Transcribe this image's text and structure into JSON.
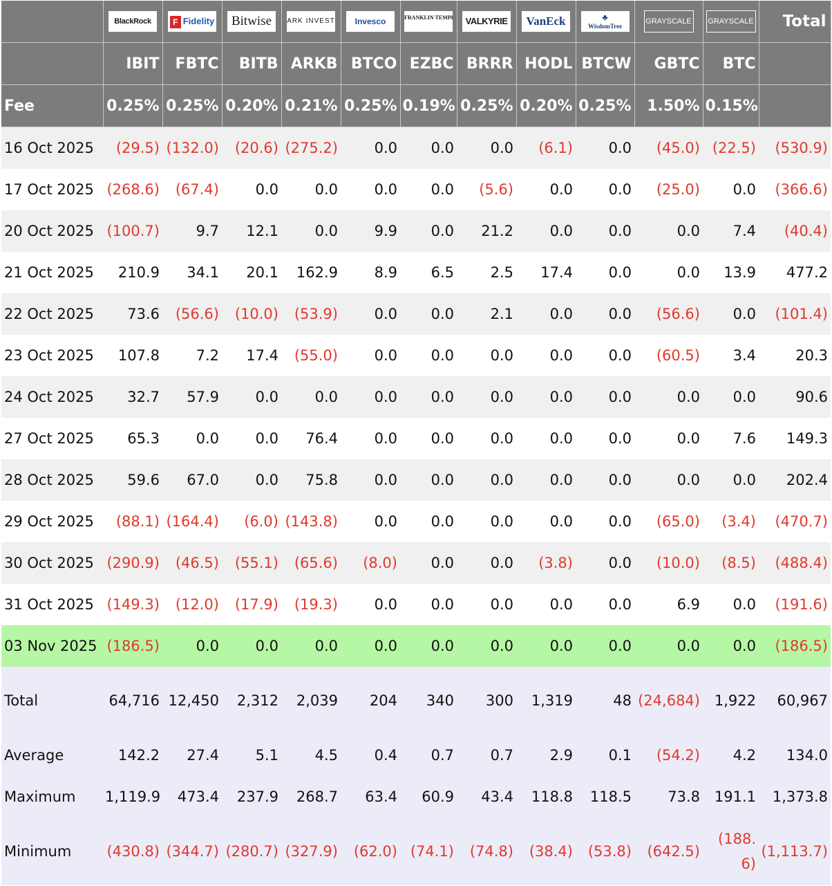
{
  "header": {
    "total_label": "Total",
    "fee_label": "Fee",
    "funds": [
      {
        "logo": "BlackRock",
        "ticker": "IBIT",
        "fee": "0.25%"
      },
      {
        "logo": "Fidelity",
        "ticker": "FBTC",
        "fee": "0.25%"
      },
      {
        "logo": "Bitwise",
        "ticker": "BITB",
        "fee": "0.20%"
      },
      {
        "logo": "ARK INVEST",
        "ticker": "ARKB",
        "fee": "0.21%"
      },
      {
        "logo": "Invesco",
        "ticker": "BTCO",
        "fee": "0.25%"
      },
      {
        "logo": "FRANKLIN TEMPLETON",
        "ticker": "EZBC",
        "fee": "0.19%"
      },
      {
        "logo": "VALKYRIE",
        "ticker": "BRRR",
        "fee": "0.25%"
      },
      {
        "logo": "VanEck",
        "ticker": "HODL",
        "fee": "0.20%"
      },
      {
        "logo": "WisdomTree",
        "ticker": "BTCW",
        "fee": "0.25%"
      },
      {
        "logo": "GRAYSCALE",
        "ticker": "GBTC",
        "fee": "1.50%"
      },
      {
        "logo": "GRAYSCALE",
        "ticker": "BTC",
        "fee": "0.15%"
      }
    ]
  },
  "rows": [
    {
      "date": "16 Oct 2025",
      "values": [
        "(29.5)",
        "(132.0)",
        "(20.6)",
        "(275.2)",
        "0.0",
        "0.0",
        "0.0",
        "(6.1)",
        "0.0",
        "(45.0)",
        "(22.5)"
      ],
      "total": "(530.9)"
    },
    {
      "date": "17 Oct 2025",
      "values": [
        "(268.6)",
        "(67.4)",
        "0.0",
        "0.0",
        "0.0",
        "0.0",
        "(5.6)",
        "0.0",
        "0.0",
        "(25.0)",
        "0.0"
      ],
      "total": "(366.6)"
    },
    {
      "date": "20 Oct 2025",
      "values": [
        "(100.7)",
        "9.7",
        "12.1",
        "0.0",
        "9.9",
        "0.0",
        "21.2",
        "0.0",
        "0.0",
        "0.0",
        "7.4"
      ],
      "total": "(40.4)"
    },
    {
      "date": "21 Oct 2025",
      "values": [
        "210.9",
        "34.1",
        "20.1",
        "162.9",
        "8.9",
        "6.5",
        "2.5",
        "17.4",
        "0.0",
        "0.0",
        "13.9"
      ],
      "total": "477.2"
    },
    {
      "date": "22 Oct 2025",
      "values": [
        "73.6",
        "(56.6)",
        "(10.0)",
        "(53.9)",
        "0.0",
        "0.0",
        "2.1",
        "0.0",
        "0.0",
        "(56.6)",
        "0.0"
      ],
      "total": "(101.4)"
    },
    {
      "date": "23 Oct 2025",
      "values": [
        "107.8",
        "7.2",
        "17.4",
        "(55.0)",
        "0.0",
        "0.0",
        "0.0",
        "0.0",
        "0.0",
        "(60.5)",
        "3.4"
      ],
      "total": "20.3"
    },
    {
      "date": "24 Oct 2025",
      "values": [
        "32.7",
        "57.9",
        "0.0",
        "0.0",
        "0.0",
        "0.0",
        "0.0",
        "0.0",
        "0.0",
        "0.0",
        "0.0"
      ],
      "total": "90.6"
    },
    {
      "date": "27 Oct 2025",
      "values": [
        "65.3",
        "0.0",
        "0.0",
        "76.4",
        "0.0",
        "0.0",
        "0.0",
        "0.0",
        "0.0",
        "0.0",
        "7.6"
      ],
      "total": "149.3"
    },
    {
      "date": "28 Oct 2025",
      "values": [
        "59.6",
        "67.0",
        "0.0",
        "75.8",
        "0.0",
        "0.0",
        "0.0",
        "0.0",
        "0.0",
        "0.0",
        "0.0"
      ],
      "total": "202.4"
    },
    {
      "date": "29 Oct 2025",
      "values": [
        "(88.1)",
        "(164.4)",
        "(6.0)",
        "(143.8)",
        "0.0",
        "0.0",
        "0.0",
        "0.0",
        "0.0",
        "(65.0)",
        "(3.4)"
      ],
      "total": "(470.7)"
    },
    {
      "date": "30 Oct 2025",
      "values": [
        "(290.9)",
        "(46.5)",
        "(55.1)",
        "(65.6)",
        "(8.0)",
        "0.0",
        "0.0",
        "(3.8)",
        "0.0",
        "(10.0)",
        "(8.5)"
      ],
      "total": "(488.4)"
    },
    {
      "date": "31 Oct 2025",
      "values": [
        "(149.3)",
        "(12.0)",
        "(17.9)",
        "(19.3)",
        "0.0",
        "0.0",
        "0.0",
        "0.0",
        "0.0",
        "6.9",
        "0.0"
      ],
      "total": "(191.6)"
    },
    {
      "date": "03 Nov 2025",
      "values": [
        "(186.5)",
        "0.0",
        "0.0",
        "0.0",
        "0.0",
        "0.0",
        "0.0",
        "0.0",
        "0.0",
        "0.0",
        "0.0"
      ],
      "total": "(186.5)"
    }
  ],
  "summary": [
    {
      "label": "Total",
      "values": [
        "64,716",
        "12,450",
        "2,312",
        "2,039",
        "204",
        "340",
        "300",
        "1,319",
        "48",
        "(24,684)",
        "1,922"
      ],
      "total": "60,967"
    },
    {
      "label": "Average",
      "values": [
        "142.2",
        "27.4",
        "5.1",
        "4.5",
        "0.4",
        "0.7",
        "0.7",
        "2.9",
        "0.1",
        "(54.2)",
        "4.2"
      ],
      "total": "134.0"
    },
    {
      "label": "Maximum",
      "values": [
        "1,119.9",
        "473.4",
        "237.9",
        "268.7",
        "63.4",
        "60.9",
        "43.4",
        "118.8",
        "118.5",
        "73.8",
        "191.1"
      ],
      "total": "1,373.8"
    },
    {
      "label": "Minimum",
      "values": [
        "(430.8)",
        "(344.7)",
        "(280.7)",
        "(327.9)",
        "(62.0)",
        "(74.1)",
        "(74.8)",
        "(38.4)",
        "(53.8)",
        "(642.5)",
        "(188.6)"
      ],
      "total": "(1,113.7)"
    }
  ],
  "colors": {
    "header_bg": "#7c7c7c",
    "negative": "#e0392b",
    "highlight": "#b6f7a5",
    "summary_bg": "#ececf8",
    "alt_row": "#f0f0f0"
  }
}
